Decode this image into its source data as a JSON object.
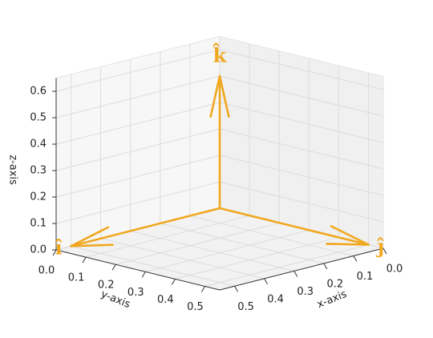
{
  "chart_data": {
    "type": "quiver3d",
    "x_label": "x-axis",
    "y_label": "y-axis",
    "z_label": "z-axis",
    "xlim": [
      0,
      0.55
    ],
    "ylim": [
      0,
      0.55
    ],
    "zlim": [
      0,
      0.65
    ],
    "xticks": [
      {
        "value": 0,
        "label": "0.0"
      },
      0.1,
      0.2,
      0.3,
      0.4,
      0.5
    ],
    "yticks": [
      {
        "value": 0,
        "label": "0.0"
      },
      0.1,
      0.2,
      0.3,
      0.4,
      0.5
    ],
    "zticks": [
      {
        "value": 0,
        "label": "0.0"
      },
      0.1,
      0.2,
      0.3,
      0.4,
      0.5,
      0.6
    ],
    "grid": true,
    "color": "#f0a820",
    "vectors": [
      {
        "label": "î",
        "x": 0.5,
        "y": 0,
        "z": 0
      },
      {
        "label": "ĵ",
        "x": 0,
        "y": 0.5,
        "z": 0
      },
      {
        "label": "k̂",
        "x": 0,
        "y": 0,
        "z": 0.5
      }
    ]
  }
}
